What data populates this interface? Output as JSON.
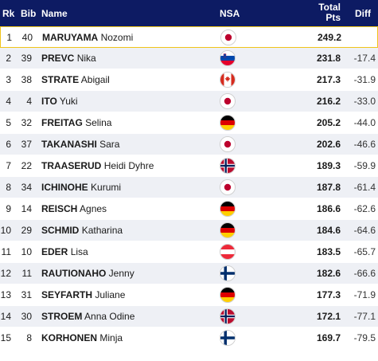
{
  "header": {
    "rk": "Rk",
    "bib": "Bib",
    "name": "Name",
    "nsa": "NSA",
    "total_line1": "Total",
    "total_line2": "Pts",
    "diff": "Diff"
  },
  "colors": {
    "header_bg": "#0d1b63",
    "leader_border": "#f0c419",
    "row_alt": "#eef0f5"
  },
  "rows": [
    {
      "rk": "1",
      "bib": "40",
      "last": "MARUYAMA",
      "first": "Nozomi",
      "flag": "JPN",
      "pts": "249.2",
      "diff": ""
    },
    {
      "rk": "2",
      "bib": "39",
      "last": "PREVC",
      "first": "Nika",
      "flag": "SLO",
      "pts": "231.8",
      "diff": "-17.4"
    },
    {
      "rk": "3",
      "bib": "38",
      "last": "STRATE",
      "first": "Abigail",
      "flag": "CAN",
      "pts": "217.3",
      "diff": "-31.9"
    },
    {
      "rk": "4",
      "bib": "4",
      "last": "ITO",
      "first": "Yuki",
      "flag": "JPN",
      "pts": "216.2",
      "diff": "-33.0"
    },
    {
      "rk": "5",
      "bib": "32",
      "last": "FREITAG",
      "first": "Selina",
      "flag": "GER",
      "pts": "205.2",
      "diff": "-44.0"
    },
    {
      "rk": "6",
      "bib": "37",
      "last": "TAKANASHI",
      "first": "Sara",
      "flag": "JPN",
      "pts": "202.6",
      "diff": "-46.6"
    },
    {
      "rk": "7",
      "bib": "22",
      "last": "TRAASERUD",
      "first": "Heidi Dyhre",
      "flag": "NOR",
      "pts": "189.3",
      "diff": "-59.9"
    },
    {
      "rk": "8",
      "bib": "34",
      "last": "ICHINOHE",
      "first": "Kurumi",
      "flag": "JPN",
      "pts": "187.8",
      "diff": "-61.4"
    },
    {
      "rk": "9",
      "bib": "14",
      "last": "REISCH",
      "first": "Agnes",
      "flag": "GER",
      "pts": "186.6",
      "diff": "-62.6"
    },
    {
      "rk": "10",
      "bib": "29",
      "last": "SCHMID",
      "first": "Katharina",
      "flag": "GER",
      "pts": "184.6",
      "diff": "-64.6"
    },
    {
      "rk": "11",
      "bib": "10",
      "last": "EDER",
      "first": "Lisa",
      "flag": "AUT",
      "pts": "183.5",
      "diff": "-65.7"
    },
    {
      "rk": "12",
      "bib": "11",
      "last": "RAUTIONAHO",
      "first": "Jenny",
      "flag": "FIN",
      "pts": "182.6",
      "diff": "-66.6"
    },
    {
      "rk": "13",
      "bib": "31",
      "last": "SEYFARTH",
      "first": "Juliane",
      "flag": "GER",
      "pts": "177.3",
      "diff": "-71.9"
    },
    {
      "rk": "14",
      "bib": "30",
      "last": "STROEM",
      "first": "Anna Odine",
      "flag": "NOR",
      "pts": "172.1",
      "diff": "-77.1"
    },
    {
      "rk": "15",
      "bib": "8",
      "last": "KORHONEN",
      "first": "Minja",
      "flag": "FIN",
      "pts": "169.7",
      "diff": "-79.5"
    }
  ]
}
